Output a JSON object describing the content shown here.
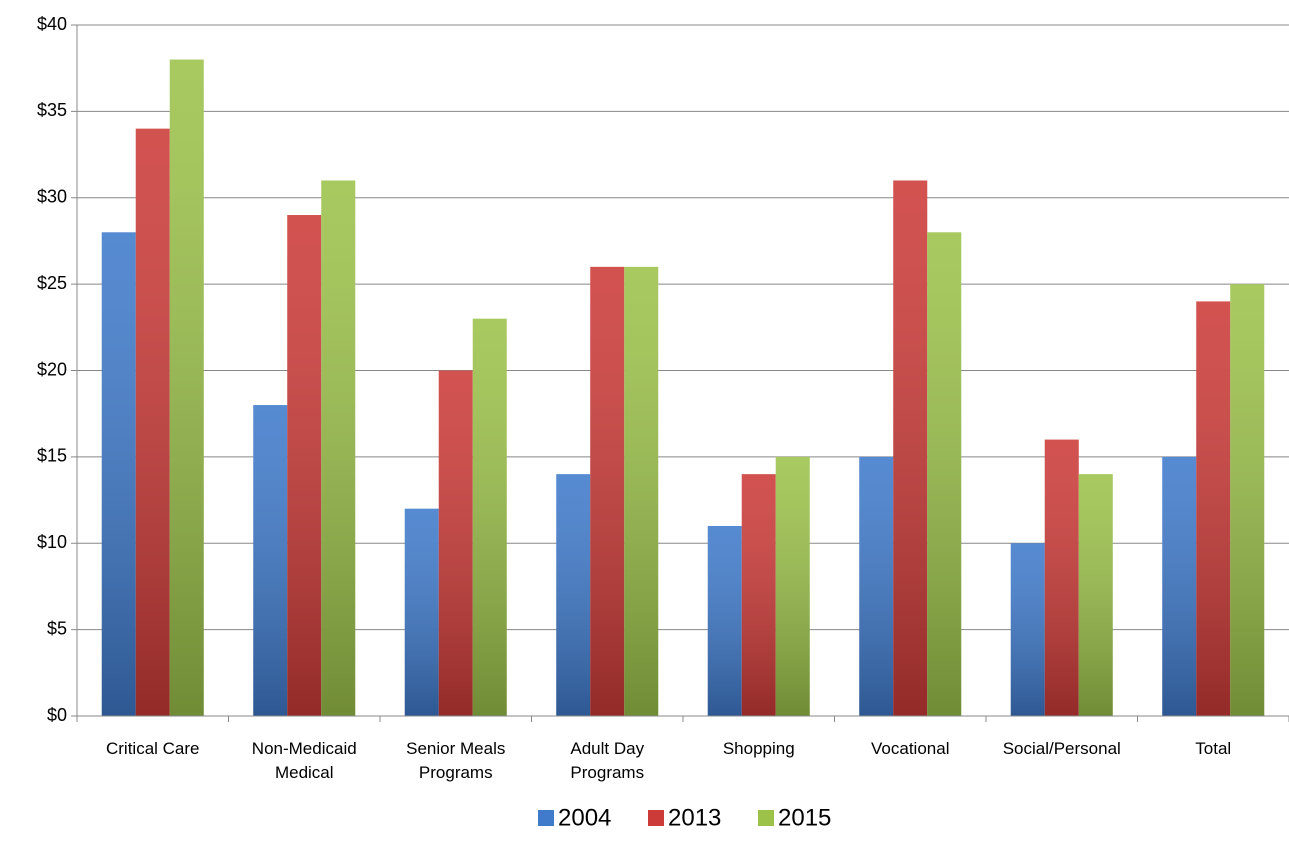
{
  "chart_data": {
    "type": "bar",
    "categories": [
      "Critical Care",
      "Non-Medicaid\nMedical",
      "Senior Meals\nPrograms",
      "Adult Day\nPrograms",
      "Shopping",
      "Vocational",
      "Social/Personal",
      "Total"
    ],
    "series": [
      {
        "name": "2004",
        "color": "#3f7acb",
        "values": [
          28,
          18,
          12,
          14,
          11,
          15,
          10,
          15
        ]
      },
      {
        "name": "2013",
        "color": "#cc3b38",
        "values": [
          34,
          29,
          20,
          26,
          14,
          31,
          16,
          24
        ]
      },
      {
        "name": "2015",
        "color": "#9cc24a",
        "values": [
          38,
          31,
          23,
          26,
          15,
          28,
          14,
          25
        ]
      }
    ],
    "ylim": [
      0,
      40
    ],
    "yticks": [
      {
        "value": 0,
        "label": "$0"
      },
      {
        "value": 5,
        "label": "$5"
      },
      {
        "value": 10,
        "label": "$10"
      },
      {
        "value": 15,
        "label": "$15"
      },
      {
        "value": 20,
        "label": "$20"
      },
      {
        "value": 25,
        "label": "$25"
      },
      {
        "value": 30,
        "label": "$30"
      },
      {
        "value": 35,
        "label": "$35"
      },
      {
        "value": 40,
        "label": "$40"
      }
    ],
    "grid": true,
    "legend": "bottom"
  }
}
